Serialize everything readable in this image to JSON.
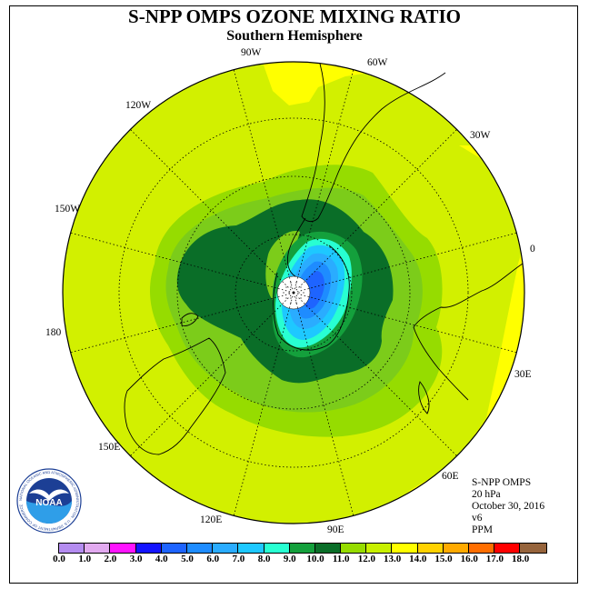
{
  "title": "S-NPP OMPS OZONE MIXING RATIO",
  "subtitle": "Southern Hemisphere",
  "longitude_labels": [
    "90W",
    "60W",
    "30W",
    "0",
    "30E",
    "60E",
    "90E",
    "120E",
    "150E",
    "180",
    "150W",
    "120W"
  ],
  "info": {
    "instrument": "S-NPP OMPS",
    "pressure": "20 hPa",
    "date": "October 30, 2016",
    "version": "v6",
    "units": "PPM"
  },
  "logo": {
    "text": "NOAA",
    "ring_text": "NATIONAL OCEANIC AND ATMOSPHERIC ADMINISTRATION · U.S. DEPARTMENT OF COMMERCE"
  },
  "colorbar": {
    "ticks": [
      "0.0",
      "1.0",
      "2.0",
      "3.0",
      "4.0",
      "5.0",
      "6.0",
      "7.0",
      "8.0",
      "9.0",
      "10.0",
      "11.0",
      "12.0",
      "13.0",
      "14.0",
      "15.0",
      "16.0",
      "17.0",
      "18.0"
    ],
    "colors": [
      "#b48cf0",
      "#e2aaf0",
      "#ff14ff",
      "#1414ff",
      "#1e64ff",
      "#1e8cff",
      "#2aacff",
      "#1ec8ff",
      "#28ffd2",
      "#14a03c",
      "#0a6e28",
      "#96dc00",
      "#c8f000",
      "#ffff00",
      "#ffd200",
      "#ffaa00",
      "#ff6e00",
      "#ff0000",
      "#c8000a",
      "#96643c"
    ],
    "colors_shown": [
      "#b48cf0",
      "#e2aaf0",
      "#ff14ff",
      "#1414ff",
      "#1e64ff",
      "#1e8cff",
      "#2aacff",
      "#1ec8ff",
      "#28ffd2",
      "#14a03c",
      "#0a6e28",
      "#96dc00",
      "#c8f000",
      "#ffff00",
      "#ffd200",
      "#ffaa00",
      "#ff6e00",
      "#ff0000",
      "#96643c"
    ]
  },
  "field_colors": {
    "background_level": "#d2f000",
    "ring_level": "#96dc00",
    "collar_level": "#7ccc1a",
    "vortex_level": "#0a6e28",
    "edge_level": "#14a03c",
    "high_level": "#ffff00",
    "low_1": "#28ffd2",
    "low_2": "#1ec8ff",
    "low_3": "#2aacff",
    "low_4": "#1e8cff",
    "low_5": "#1e64ff",
    "pole_fill": "#ffffff"
  }
}
